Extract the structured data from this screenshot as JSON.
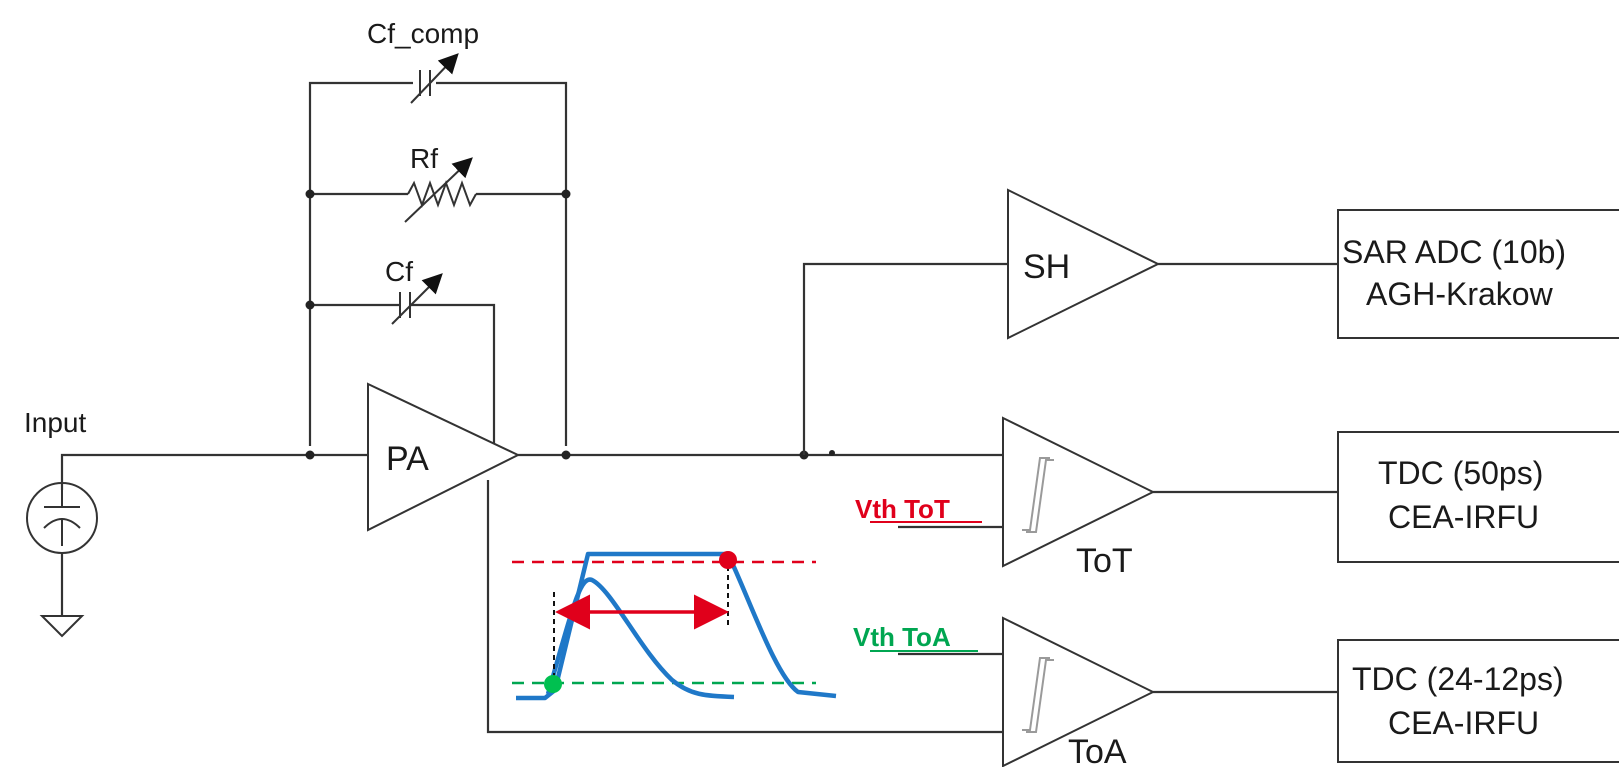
{
  "components": {
    "cf_comp": "Cf_comp",
    "rf": "Rf",
    "cf": "Cf",
    "input": "Input",
    "pa": "PA",
    "sh": "SH",
    "tot": "ToT",
    "toa": "ToA"
  },
  "thresholds": {
    "vth_tot": {
      "label": "Vth ToT",
      "color": "#e0001b"
    },
    "vth_toa": {
      "label": "Vth ToA",
      "color": "#00a651"
    }
  },
  "blocks": [
    {
      "line1": "SAR ADC (10b)",
      "line2": "AGH-Krakow"
    },
    {
      "line1": "TDC (50ps)",
      "line2": "CEA-IRFU"
    },
    {
      "line1": "TDC (24-12ps)",
      "line2": "CEA-IRFU"
    }
  ],
  "colors": {
    "pulse": "#1f78c8",
    "tot_threshold": "#e0001b",
    "toa_threshold": "#00a651"
  }
}
